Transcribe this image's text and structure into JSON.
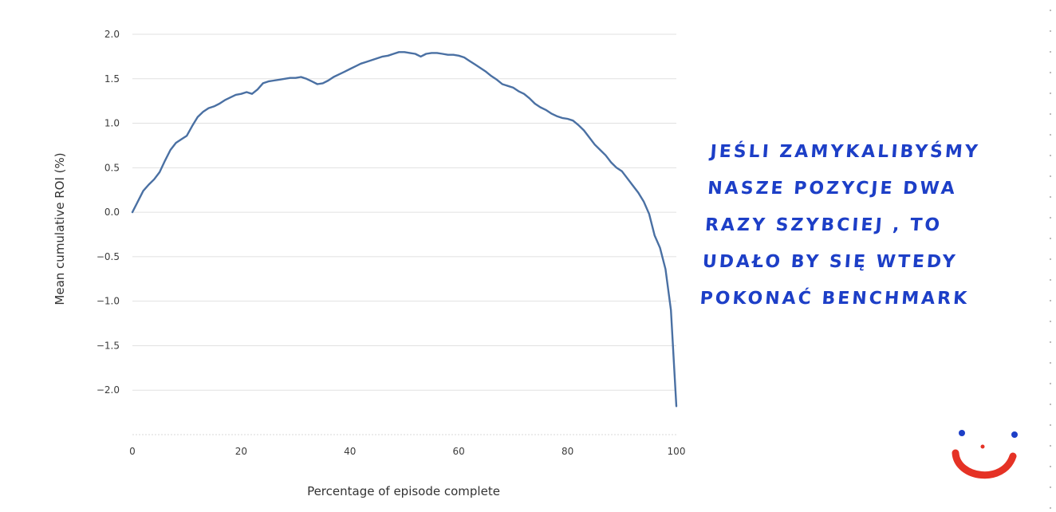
{
  "chart_data": {
    "type": "line",
    "title": "",
    "xlabel": "Percentage of episode complete",
    "ylabel": "Mean cumulative ROI (%)",
    "xlim": [
      0,
      100
    ],
    "ylim": [
      -2.5,
      2.0
    ],
    "x_ticks": [
      0,
      20,
      40,
      60,
      80,
      100
    ],
    "x_tick_labels": [
      "0",
      "20",
      "40",
      "60",
      "80",
      "100"
    ],
    "y_ticks": [
      2.0,
      1.5,
      1.0,
      0.5,
      0.0,
      -0.5,
      -1.0,
      -1.5,
      -2.0
    ],
    "y_tick_labels": [
      "2.0",
      "1.5",
      "1.0",
      "0.5",
      "0.0",
      "−0.5",
      "−1.0",
      "−1.5",
      "−2.0"
    ],
    "grid": true,
    "legend": "none",
    "series": [
      {
        "color": "#4a70a3",
        "x": [
          0,
          1,
          2,
          3,
          4,
          5,
          6,
          7,
          8,
          9,
          10,
          11,
          12,
          13,
          14,
          15,
          16,
          17,
          18,
          19,
          20,
          21,
          22,
          23,
          24,
          25,
          26,
          27,
          28,
          29,
          30,
          31,
          32,
          33,
          34,
          35,
          36,
          37,
          38,
          39,
          40,
          41,
          42,
          43,
          44,
          45,
          46,
          47,
          48,
          49,
          50,
          51,
          52,
          53,
          54,
          55,
          56,
          57,
          58,
          59,
          60,
          61,
          62,
          63,
          64,
          65,
          66,
          67,
          68,
          69,
          70,
          71,
          72,
          73,
          74,
          75,
          76,
          77,
          78,
          79,
          80,
          81,
          82,
          83,
          84,
          85,
          86,
          87,
          88,
          89,
          90,
          91,
          92,
          93,
          94,
          95,
          96,
          97,
          98,
          99,
          100
        ],
        "y": [
          0.0,
          0.12,
          0.24,
          0.31,
          0.37,
          0.45,
          0.58,
          0.7,
          0.78,
          0.82,
          0.86,
          0.97,
          1.07,
          1.13,
          1.17,
          1.19,
          1.22,
          1.26,
          1.29,
          1.32,
          1.33,
          1.35,
          1.33,
          1.38,
          1.45,
          1.47,
          1.48,
          1.49,
          1.5,
          1.51,
          1.51,
          1.52,
          1.5,
          1.47,
          1.44,
          1.45,
          1.48,
          1.52,
          1.55,
          1.58,
          1.61,
          1.64,
          1.67,
          1.69,
          1.71,
          1.73,
          1.75,
          1.76,
          1.78,
          1.8,
          1.8,
          1.79,
          1.78,
          1.75,
          1.78,
          1.79,
          1.79,
          1.78,
          1.77,
          1.77,
          1.76,
          1.74,
          1.7,
          1.66,
          1.62,
          1.58,
          1.53,
          1.49,
          1.44,
          1.42,
          1.4,
          1.36,
          1.33,
          1.28,
          1.22,
          1.18,
          1.15,
          1.11,
          1.08,
          1.06,
          1.05,
          1.03,
          0.98,
          0.92,
          0.84,
          0.76,
          0.7,
          0.64,
          0.56,
          0.5,
          0.46,
          0.38,
          0.3,
          0.22,
          0.12,
          -0.02,
          -0.26,
          -0.4,
          -0.64,
          -1.1,
          -2.18
        ]
      }
    ]
  },
  "annotation": {
    "handwritten_note": "JEŚLI ZAMYKALIBYŚMY\nNASZE POZYCJE DWA\nRAZY SZYBCIEJ , TO\nUDAŁO BY SIĘ WTEDY\nPOKONAĆ BENCHMARK",
    "note_color": "#1d3fc7",
    "smiley_color": "#e53225",
    "smiley_eye_color": "#1d3fc7"
  }
}
